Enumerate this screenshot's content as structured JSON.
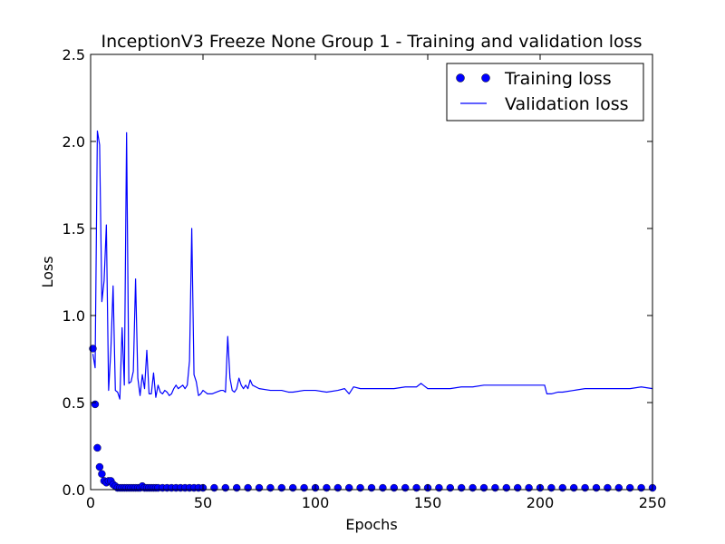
{
  "chart_data": {
    "type": "line",
    "title": "InceptionV3 Freeze None Group 1 - Training and validation loss",
    "xlabel": "Epochs",
    "ylabel": "Loss",
    "xlim": [
      0,
      250
    ],
    "ylim": [
      0,
      2.5
    ],
    "x_ticks": [
      "0",
      "50",
      "100",
      "150",
      "200",
      "250"
    ],
    "y_ticks": [
      "0.0",
      "0.5",
      "1.0",
      "1.5",
      "2.0",
      "2.5"
    ],
    "grid": false,
    "legend_position": "upper right",
    "series": [
      {
        "name": "Training loss",
        "style": "markers",
        "color": "#0000ff",
        "x": [
          1,
          2,
          3,
          4,
          5,
          6,
          7,
          8,
          9,
          10,
          11,
          12,
          13,
          14,
          15,
          16,
          17,
          18,
          19,
          20,
          21,
          22,
          23,
          24,
          25,
          26,
          27,
          28,
          29,
          30,
          32,
          34,
          36,
          38,
          40,
          42,
          44,
          46,
          48,
          50,
          55,
          60,
          65,
          70,
          75,
          80,
          85,
          90,
          95,
          100,
          105,
          110,
          115,
          120,
          125,
          130,
          135,
          140,
          145,
          150,
          155,
          160,
          165,
          170,
          175,
          180,
          185,
          190,
          195,
          200,
          205,
          210,
          215,
          220,
          225,
          230,
          235,
          240,
          245,
          250
        ],
        "y": [
          0.81,
          0.49,
          0.24,
          0.13,
          0.09,
          0.05,
          0.04,
          0.05,
          0.05,
          0.03,
          0.02,
          0.01,
          0.01,
          0.01,
          0.01,
          0.01,
          0.01,
          0.01,
          0.01,
          0.01,
          0.01,
          0.01,
          0.02,
          0.01,
          0.01,
          0.01,
          0.01,
          0.01,
          0.01,
          0.01,
          0.01,
          0.01,
          0.01,
          0.01,
          0.01,
          0.01,
          0.01,
          0.01,
          0.01,
          0.01,
          0.01,
          0.01,
          0.01,
          0.01,
          0.01,
          0.01,
          0.01,
          0.01,
          0.01,
          0.01,
          0.01,
          0.01,
          0.01,
          0.01,
          0.01,
          0.01,
          0.01,
          0.01,
          0.01,
          0.01,
          0.01,
          0.01,
          0.01,
          0.01,
          0.01,
          0.01,
          0.01,
          0.01,
          0.01,
          0.01,
          0.01,
          0.01,
          0.01,
          0.01,
          0.01,
          0.01,
          0.01,
          0.01,
          0.01,
          0.01
        ]
      },
      {
        "name": "Validation loss",
        "style": "line",
        "color": "#0000ff",
        "x": [
          1,
          2,
          3,
          4,
          5,
          6,
          7,
          8,
          9,
          10,
          11,
          12,
          13,
          14,
          15,
          16,
          17,
          18,
          19,
          20,
          21,
          22,
          23,
          24,
          25,
          26,
          27,
          28,
          29,
          30,
          31,
          32,
          33,
          34,
          35,
          36,
          37,
          38,
          39,
          40,
          41,
          42,
          43,
          44,
          45,
          46,
          47,
          48,
          49,
          50,
          52,
          54,
          56,
          58,
          59,
          60,
          61,
          62,
          63,
          64,
          65,
          66,
          67,
          68,
          69,
          70,
          71,
          72,
          75,
          80,
          85,
          88,
          90,
          95,
          100,
          105,
          110,
          113,
          115,
          117,
          120,
          125,
          130,
          135,
          140,
          145,
          147,
          148,
          150,
          152,
          155,
          160,
          165,
          170,
          175,
          180,
          185,
          190,
          195,
          200,
          202,
          203,
          205,
          208,
          210,
          215,
          220,
          225,
          230,
          235,
          240,
          245,
          250
        ],
        "y": [
          0.78,
          0.7,
          2.06,
          1.98,
          1.08,
          1.2,
          1.52,
          0.57,
          0.8,
          1.17,
          0.57,
          0.56,
          0.52,
          0.93,
          0.6,
          2.05,
          0.61,
          0.62,
          0.68,
          1.21,
          0.64,
          0.54,
          0.66,
          0.58,
          0.8,
          0.55,
          0.55,
          0.67,
          0.53,
          0.6,
          0.56,
          0.55,
          0.57,
          0.56,
          0.54,
          0.55,
          0.58,
          0.6,
          0.58,
          0.59,
          0.6,
          0.58,
          0.6,
          0.74,
          1.5,
          0.66,
          0.62,
          0.54,
          0.55,
          0.57,
          0.55,
          0.55,
          0.56,
          0.57,
          0.57,
          0.56,
          0.88,
          0.64,
          0.57,
          0.56,
          0.58,
          0.64,
          0.6,
          0.58,
          0.6,
          0.58,
          0.63,
          0.6,
          0.58,
          0.57,
          0.57,
          0.56,
          0.56,
          0.57,
          0.57,
          0.56,
          0.57,
          0.58,
          0.55,
          0.59,
          0.58,
          0.58,
          0.58,
          0.58,
          0.59,
          0.59,
          0.61,
          0.6,
          0.58,
          0.58,
          0.58,
          0.58,
          0.59,
          0.59,
          0.6,
          0.6,
          0.6,
          0.6,
          0.6,
          0.6,
          0.6,
          0.55,
          0.55,
          0.56,
          0.56,
          0.57,
          0.58,
          0.58,
          0.58,
          0.58,
          0.58,
          0.59,
          0.58
        ]
      }
    ]
  }
}
